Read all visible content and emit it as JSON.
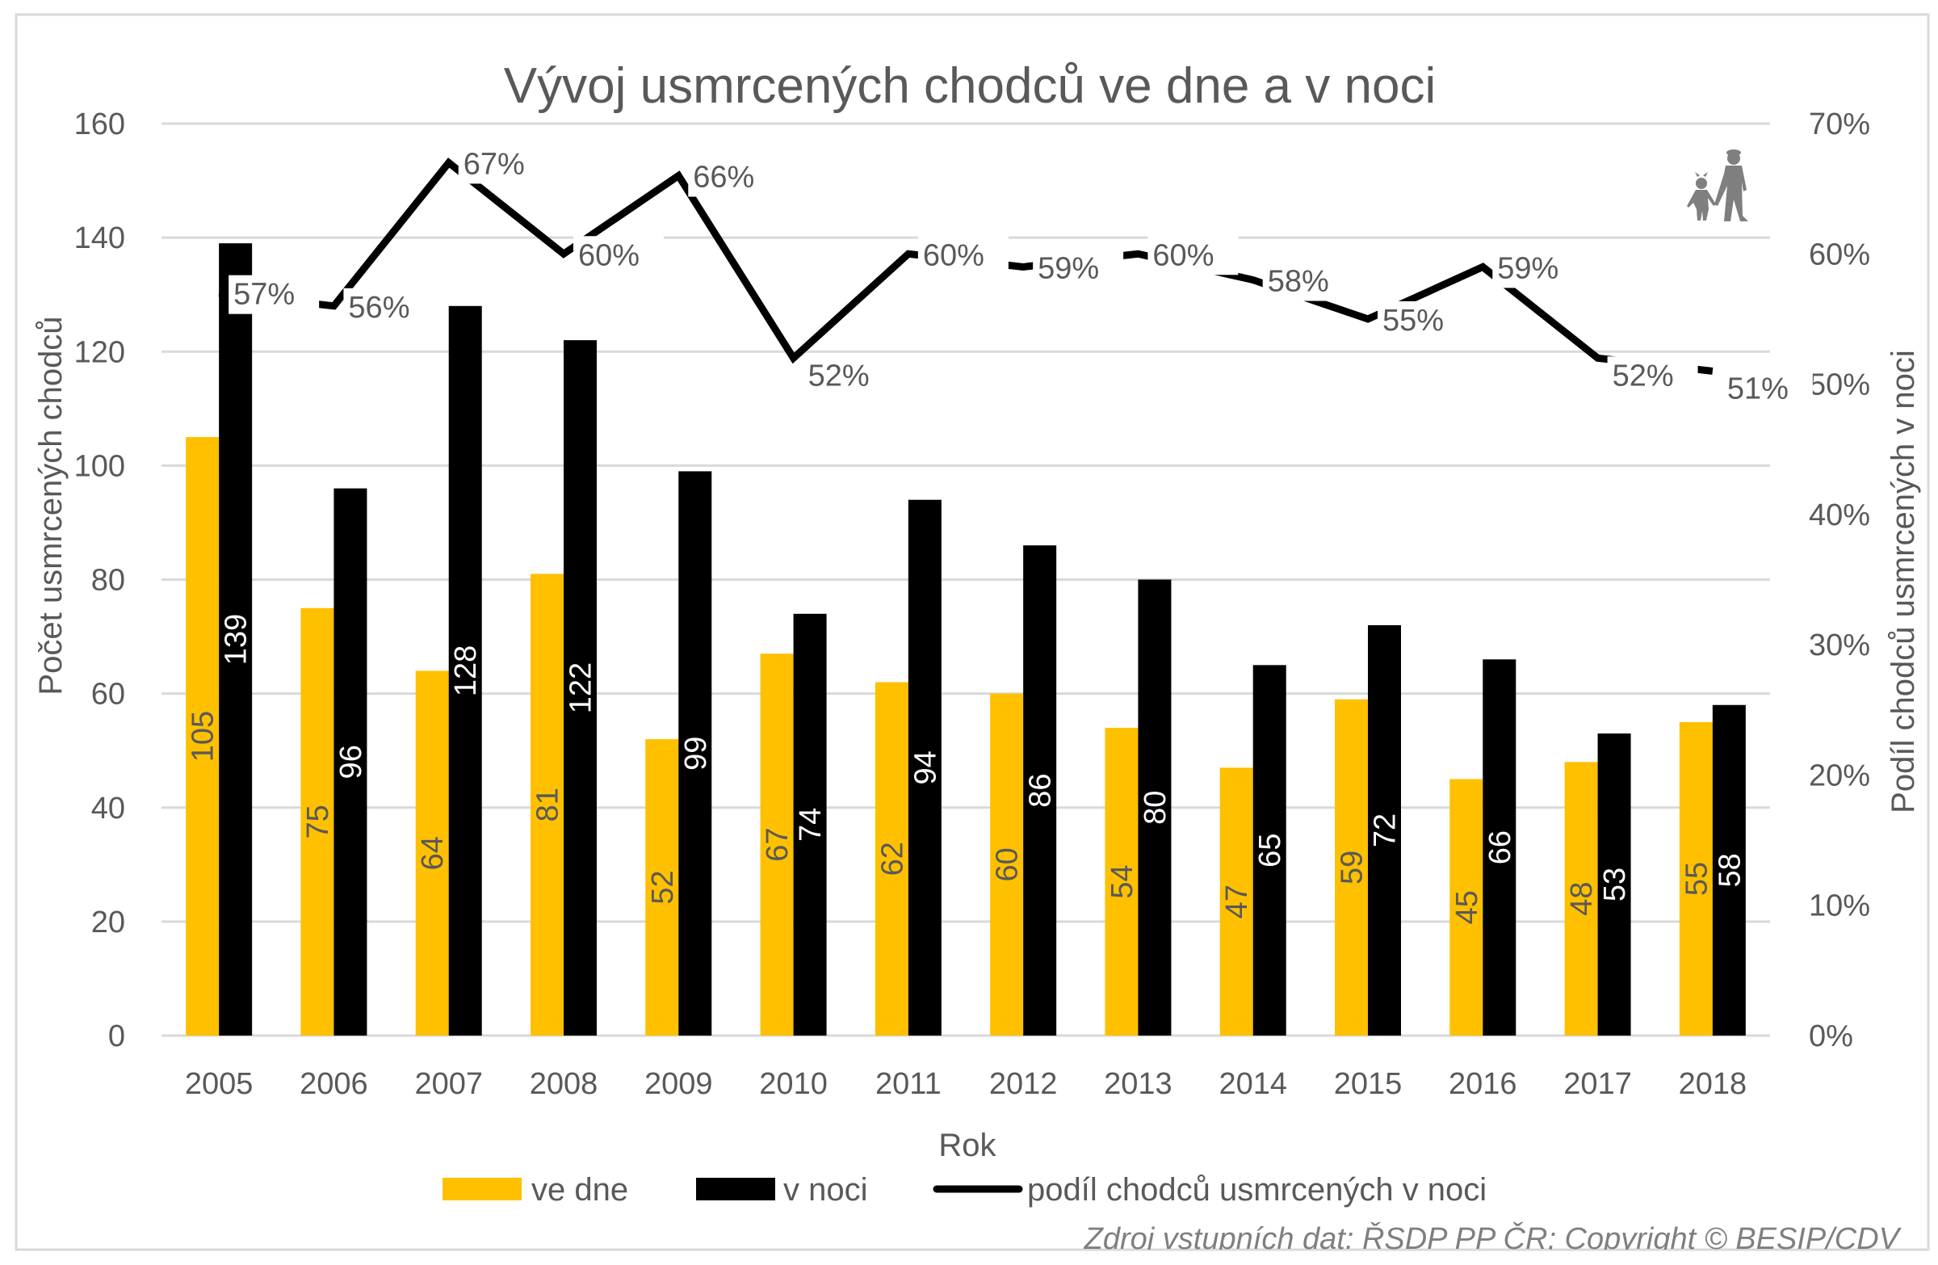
{
  "chart": {
    "title": "Vývoj usmrcených chodců ve dne a v noci",
    "x_axis_title": "Rok",
    "y_left_title": "Počet usmrcených chodců",
    "y_right_title": "Podíl chodců usmrcených v noci",
    "y_left_ticks": [
      "0",
      "20",
      "40",
      "60",
      "80",
      "100",
      "120",
      "140",
      "160"
    ],
    "y_right_ticks": [
      "0%",
      "10%",
      "20%",
      "30%",
      "40%",
      "50%",
      "60%",
      "70%"
    ],
    "legend": {
      "day": "ve dne",
      "night": "v noci",
      "share": "podíl chodců usmrcených v noci"
    },
    "source": "Zdroj vstupních dat: ŘSDP PP ČR; Copyright © BESIP/CDV",
    "icon": "pedestrian-adult-child-icon",
    "colors": {
      "day": "#FFC000",
      "night": "#000000",
      "line": "#000000",
      "grid": "#D9D9D9",
      "text": "#595959"
    }
  },
  "chart_data": {
    "type": "bar",
    "title": "Vývoj usmrcených chodců ve dne a v noci",
    "xlabel": "Rok",
    "ylabel": "Počet usmrcených chodců",
    "y2label": "Podíl chodců usmrcených v noci",
    "ylim": [
      0,
      160
    ],
    "y2lim": [
      0,
      0.7
    ],
    "grid": true,
    "legend_position": "bottom",
    "categories": [
      "2005",
      "2006",
      "2007",
      "2008",
      "2009",
      "2010",
      "2011",
      "2012",
      "2013",
      "2014",
      "2015",
      "2016",
      "2017",
      "2018"
    ],
    "series": [
      {
        "name": "ve dne",
        "type": "bar",
        "axis": "left",
        "values": [
          105,
          75,
          64,
          81,
          52,
          67,
          62,
          60,
          54,
          47,
          59,
          45,
          48,
          55
        ]
      },
      {
        "name": "v noci",
        "type": "bar",
        "axis": "left",
        "values": [
          139,
          96,
          128,
          122,
          99,
          74,
          94,
          86,
          80,
          65,
          72,
          66,
          53,
          58
        ]
      },
      {
        "name": "podíl chodců usmrcených v noci",
        "type": "line",
        "axis": "right",
        "values": [
          57,
          56,
          67,
          60,
          66,
          52,
          60,
          59,
          60,
          58,
          55,
          59,
          52,
          51
        ],
        "labels": [
          "57%",
          "56%",
          "67%",
          "60%",
          "66%",
          "52%",
          "60%",
          "59%",
          "60%",
          "58%",
          "55%",
          "59%",
          "52%",
          "51%"
        ]
      }
    ]
  }
}
